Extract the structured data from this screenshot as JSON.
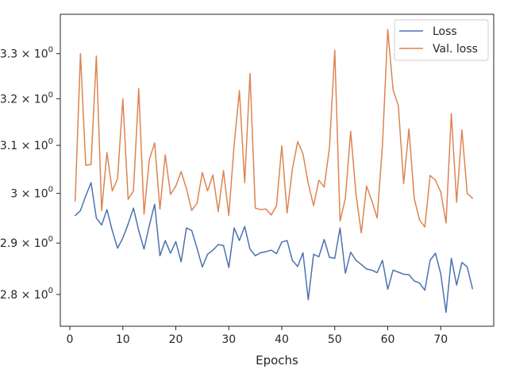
{
  "chart_data": {
    "type": "line",
    "xlabel": "Epochs",
    "ylabel": "",
    "yscale": "log",
    "xlim": [
      -1.8,
      80.0
    ],
    "ylim": [
      2.74,
      3.39
    ],
    "grid": false,
    "legend_position": "top-right",
    "x_ticks": [
      {
        "value": 0,
        "label": "0"
      },
      {
        "value": 10,
        "label": "10"
      },
      {
        "value": 20,
        "label": "20"
      },
      {
        "value": 30,
        "label": "30"
      },
      {
        "value": 40,
        "label": "40"
      },
      {
        "value": 50,
        "label": "50"
      },
      {
        "value": 60,
        "label": "60"
      },
      {
        "value": 70,
        "label": "70"
      }
    ],
    "y_ticks": [
      {
        "value": 2.8,
        "base": "2.8",
        "exp": "0"
      },
      {
        "value": 2.9,
        "base": "2.9",
        "exp": "0"
      },
      {
        "value": 3.0,
        "base": "3",
        "exp": "0"
      },
      {
        "value": 3.1,
        "base": "3.1",
        "exp": "0"
      },
      {
        "value": 3.2,
        "base": "3.2",
        "exp": "0"
      },
      {
        "value": 3.3,
        "base": "3.3",
        "exp": "0"
      }
    ],
    "series": [
      {
        "name": "Loss",
        "color": "#4c72b0",
        "x": [
          1,
          2,
          3,
          4,
          5,
          6,
          7,
          8,
          9,
          10,
          11,
          12,
          13,
          14,
          15,
          16,
          17,
          18,
          19,
          20,
          21,
          22,
          23,
          24,
          25,
          26,
          27,
          28,
          29,
          30,
          31,
          32,
          33,
          34,
          35,
          36,
          37,
          38,
          39,
          40,
          41,
          42,
          43,
          44,
          45,
          46,
          47,
          48,
          49,
          50,
          51,
          52,
          53,
          54,
          55,
          56,
          57,
          58,
          59,
          60,
          61,
          62,
          63,
          64,
          65,
          66,
          67,
          68,
          69,
          70,
          71,
          72,
          73,
          74,
          75,
          76
        ],
        "y": [
          2.955,
          2.965,
          2.995,
          3.022,
          2.95,
          2.936,
          2.967,
          2.925,
          2.89,
          2.91,
          2.938,
          2.97,
          2.925,
          2.888,
          2.935,
          2.978,
          2.875,
          2.905,
          2.88,
          2.903,
          2.863,
          2.93,
          2.925,
          2.89,
          2.853,
          2.878,
          2.886,
          2.897,
          2.895,
          2.852,
          2.93,
          2.905,
          2.933,
          2.888,
          2.875,
          2.881,
          2.883,
          2.886,
          2.879,
          2.902,
          2.905,
          2.866,
          2.854,
          2.881,
          2.79,
          2.878,
          2.873,
          2.907,
          2.872,
          2.87,
          2.93,
          2.841,
          2.882,
          2.866,
          2.858,
          2.849,
          2.847,
          2.842,
          2.866,
          2.81,
          2.847,
          2.843,
          2.839,
          2.838,
          2.826,
          2.822,
          2.808,
          2.866,
          2.88,
          2.84,
          2.766,
          2.87,
          2.818,
          2.862,
          2.853,
          2.811
        ]
      },
      {
        "name": "Val. loss",
        "color": "#dd8452",
        "x": [
          1,
          2,
          3,
          4,
          5,
          6,
          7,
          8,
          9,
          10,
          11,
          12,
          13,
          14,
          15,
          16,
          17,
          18,
          19,
          20,
          21,
          22,
          23,
          24,
          25,
          26,
          27,
          28,
          29,
          30,
          31,
          32,
          33,
          34,
          35,
          36,
          37,
          38,
          39,
          40,
          41,
          42,
          43,
          44,
          45,
          46,
          47,
          48,
          49,
          50,
          51,
          52,
          53,
          54,
          55,
          56,
          57,
          58,
          59,
          60,
          61,
          62,
          63,
          64,
          65,
          66,
          67,
          68,
          69,
          70,
          71,
          72,
          73,
          74,
          75,
          76
        ],
        "y": [
          2.984,
          3.3,
          3.058,
          3.06,
          3.295,
          2.965,
          3.085,
          3.005,
          3.03,
          3.2,
          2.988,
          3.005,
          3.222,
          2.958,
          3.07,
          3.105,
          2.968,
          3.08,
          2.998,
          3.015,
          3.045,
          3.01,
          2.965,
          2.98,
          3.043,
          3.005,
          3.038,
          2.963,
          3.047,
          2.955,
          3.1,
          3.218,
          3.022,
          3.256,
          2.97,
          2.967,
          2.968,
          2.956,
          2.975,
          3.099,
          2.96,
          3.05,
          3.108,
          3.082,
          3.02,
          2.975,
          3.027,
          3.013,
          3.095,
          3.308,
          2.944,
          2.99,
          3.13,
          2.999,
          2.92,
          3.015,
          2.985,
          2.95,
          3.1,
          3.355,
          3.22,
          3.185,
          3.02,
          3.135,
          2.99,
          2.946,
          2.932,
          3.037,
          3.027,
          3.003,
          2.94,
          3.168,
          2.982,
          3.133,
          3.0,
          2.99
        ]
      }
    ]
  }
}
